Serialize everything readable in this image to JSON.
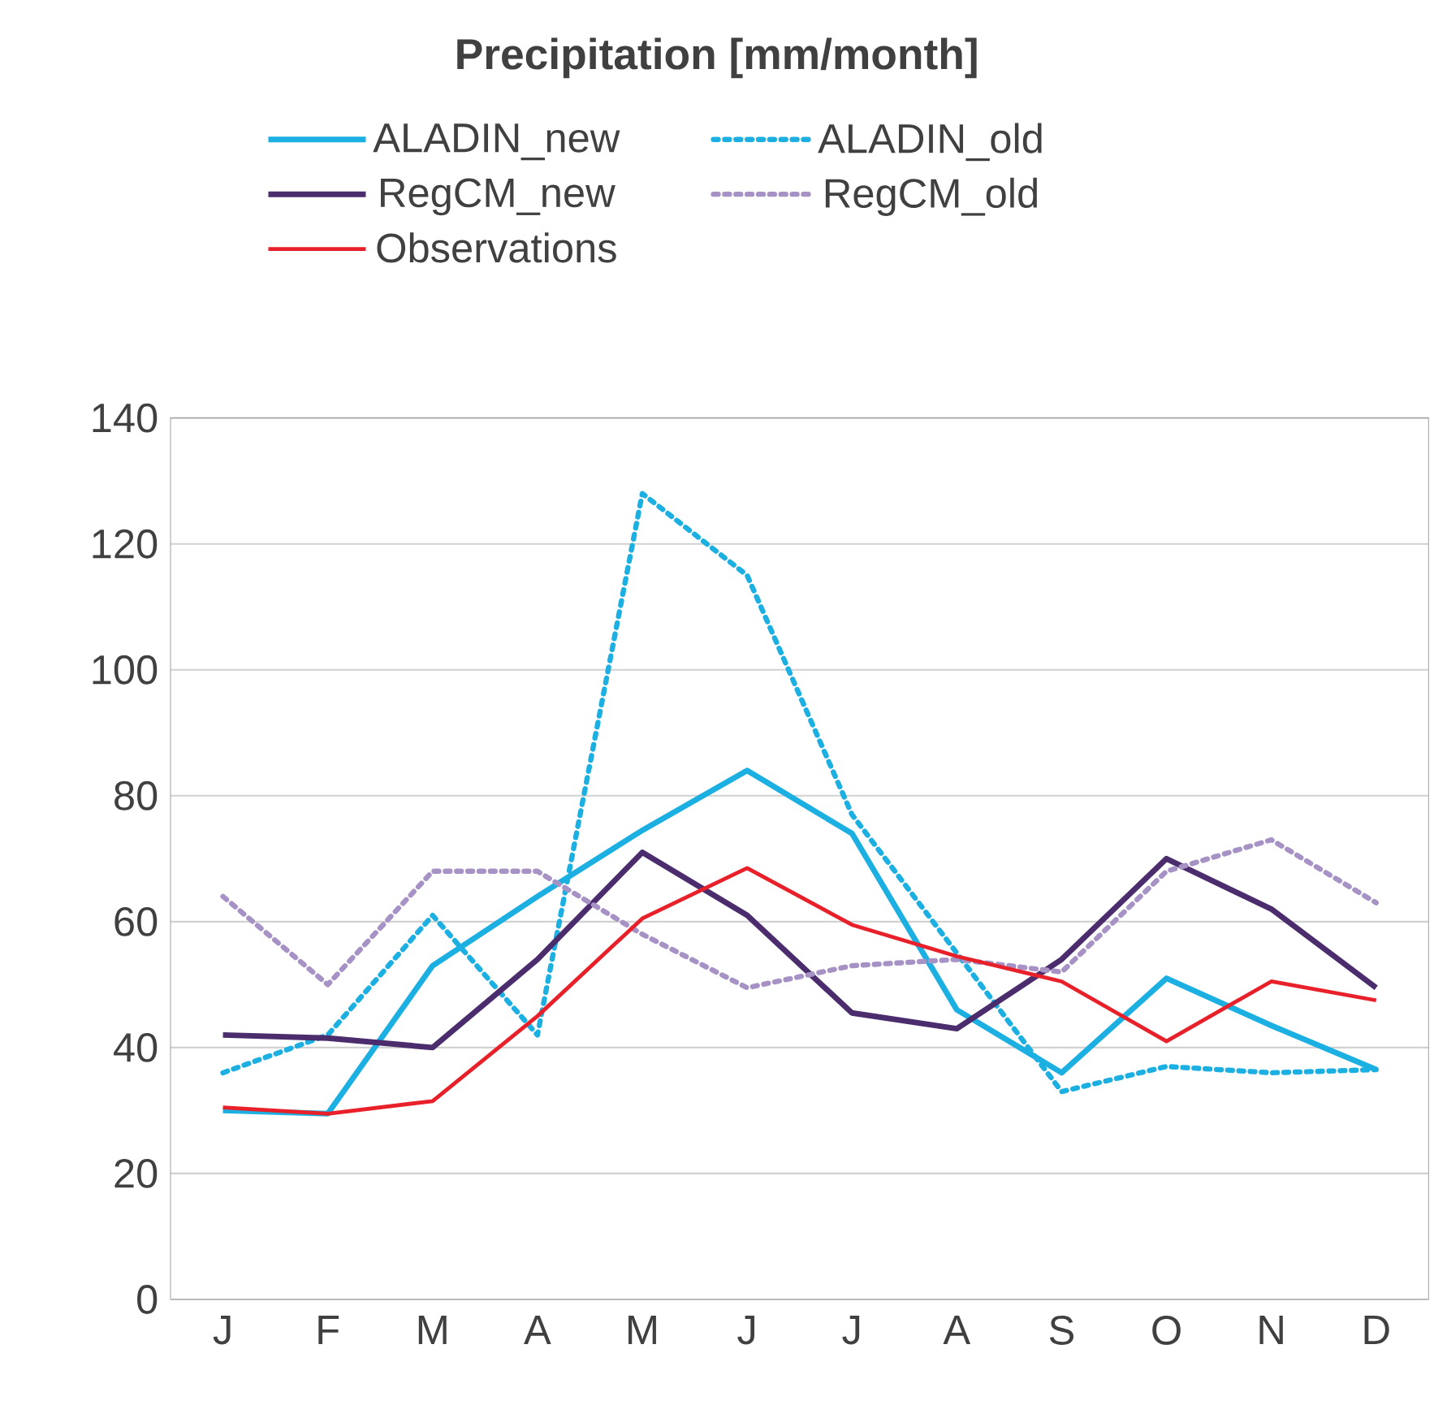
{
  "chart_data": {
    "type": "line",
    "title": "**Precipitation  [mm/month]**",
    "categories": [
      "J",
      "F",
      "M",
      "A",
      "M",
      "J",
      "J",
      "A",
      "S",
      "O",
      "N",
      "D"
    ],
    "series": [
      {
        "name": "ALADIN_new",
        "color": "#1cb0e2",
        "line_style": "solid",
        "values": [
          30,
          29.5,
          53,
          64,
          74.5,
          84,
          74,
          46,
          36,
          51,
          43.5,
          36.5
        ]
      },
      {
        "name": "ALADIN_old",
        "color": "#1cb0e2",
        "line_style": "dotted",
        "values": [
          36,
          42,
          61,
          42,
          128,
          115,
          77,
          55,
          33,
          37,
          36,
          36.5
        ]
      },
      {
        "name": "RegCM_new",
        "color": "#4b2d6e",
        "line_style": "solid",
        "values": [
          42,
          41.5,
          40,
          54,
          71,
          61,
          45.5,
          43,
          54,
          70,
          62,
          49.5
        ]
      },
      {
        "name": "RegCM_old",
        "color": "#a792c6",
        "line_style": "dotted",
        "values": [
          64,
          50,
          68,
          68,
          58,
          49.5,
          53,
          54,
          52,
          68,
          73,
          63
        ]
      },
      {
        "name": "Observations",
        "color": "#e8202a",
        "line_style": "solid",
        "values": [
          30.5,
          29.5,
          31.5,
          45,
          60.5,
          68.5,
          59.5,
          54.5,
          50.5,
          41,
          50.5,
          47.5
        ]
      }
    ],
    "ylim": [
      0,
      140
    ],
    "yticks": [
      0,
      20,
      40,
      60,
      80,
      100,
      120,
      140
    ],
    "grid": "y",
    "legend": "top",
    "marker": "none"
  }
}
